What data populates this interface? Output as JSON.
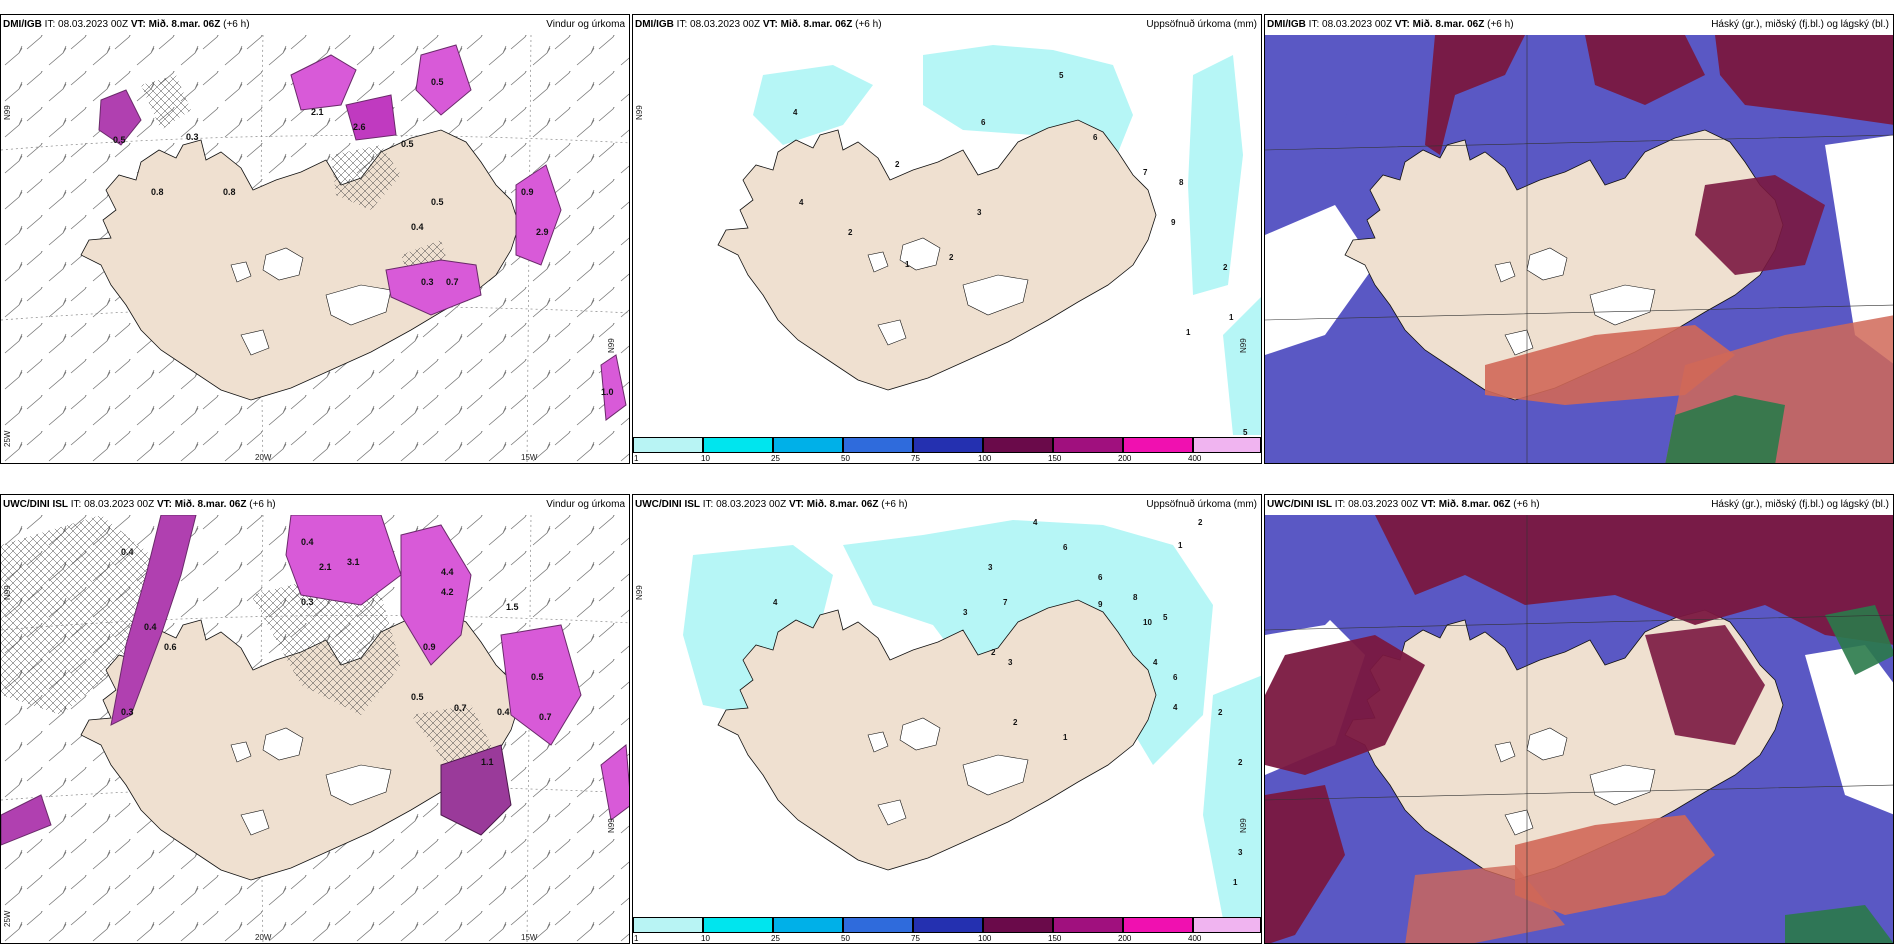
{
  "panels": [
    {
      "model": "DMI/IGB",
      "init": "IT: 08.03.2023 00Z",
      "valid_label": "VT:",
      "valid": "Mið. 8.mar. 06Z",
      "lead": "(+6 h)",
      "title": "Vindur og úrkoma",
      "lat_labels": [
        "N99",
        "N99",
        "25W"
      ],
      "lon_labels": [
        "20W",
        "15W"
      ],
      "values": [
        "2.1",
        "2.6",
        "0.5",
        "0.5",
        "0.3",
        "0.8",
        "0.5",
        "0.4",
        "0.3",
        "0.7",
        "2.9",
        "0.5",
        "0.8",
        "0.9",
        "1.0"
      ]
    },
    {
      "model": "DMI/IGB",
      "init": "IT: 08.03.2023 00Z",
      "valid_label": "VT:",
      "valid": "Mið. 8.mar. 06Z",
      "lead": "(+6 h)",
      "title": "Uppsöfnuð úrkoma (mm)",
      "lat_labels": [
        "N99",
        "N99"
      ],
      "values": [
        "5",
        "6",
        "4",
        "6",
        "7",
        "8",
        "9",
        "2",
        "2",
        "3",
        "2",
        "1",
        "1",
        "1",
        "2",
        "5",
        "4"
      ]
    },
    {
      "model": "DMI/IGB",
      "init": "IT: 08.03.2023 00Z",
      "valid_label": "VT:",
      "valid": "Mið. 8.mar. 06Z",
      "lead": "(+6 h)",
      "title": "Háský (gr.), miðský (fj.bl.) og lágský (bl.)"
    },
    {
      "model": "UWC/DINI ISL",
      "init": "IT: 08.03.2023 00Z",
      "valid_label": "VT:",
      "valid": "Mið. 8.mar. 06Z",
      "lead": "(+6 h)",
      "title": "Vindur og úrkoma",
      "lat_labels": [
        "N99",
        "N99",
        "25W"
      ],
      "lon_labels": [
        "20W",
        "15W"
      ],
      "values": [
        "0.4",
        "0.4",
        "2.1",
        "3.1",
        "4.4",
        "0.3",
        "0.4",
        "0.6",
        "0.9",
        "0.7",
        "0.4",
        "0.5",
        "1.1",
        "1.5",
        "0.3",
        "4.2",
        "0.5",
        "0.7"
      ]
    },
    {
      "model": "UWC/DINI ISL",
      "init": "IT: 08.03.2023 00Z",
      "valid_label": "VT:",
      "valid": "Mið. 8.mar. 06Z",
      "lead": "(+6 h)",
      "title": "Uppsöfnuð úrkoma (mm)",
      "lat_labels": [
        "N99",
        "N99"
      ],
      "values": [
        "4",
        "6",
        "2",
        "1",
        "3",
        "4",
        "7",
        "3",
        "6",
        "8",
        "9",
        "10",
        "5",
        "4",
        "6",
        "4",
        "3",
        "2",
        "2",
        "1",
        "2",
        "3",
        "1",
        "2"
      ]
    },
    {
      "model": "UWC/DINI ISL",
      "init": "IT: 08.03.2023 00Z",
      "valid_label": "VT:",
      "valid": "Mið. 8.mar. 06Z",
      "lead": "(+6 h)",
      "title": "Háský (gr.), miðský (fj.bl.) og lágský (bl.)"
    }
  ],
  "colorbar": {
    "ticks": [
      "1",
      "10",
      "25",
      "50",
      "75",
      "100",
      "150",
      "200",
      "400"
    ],
    "colors": [
      "#b8f4f4",
      "#00e5ee",
      "#00b0e8",
      "#2f6bdc",
      "#2430b0",
      "#6a0a4a",
      "#a0107e",
      "#f010b0",
      "#f0b4f0"
    ]
  },
  "colors": {
    "land": "#efe0d0",
    "precip_light": "#b6f6f6",
    "precip_magenta": "#d85ad8",
    "cloud_high": "#7a1840",
    "cloud_mid": "#5a58c4",
    "cloud_low": "#d06858",
    "cloud_green": "#2a7a4a"
  }
}
